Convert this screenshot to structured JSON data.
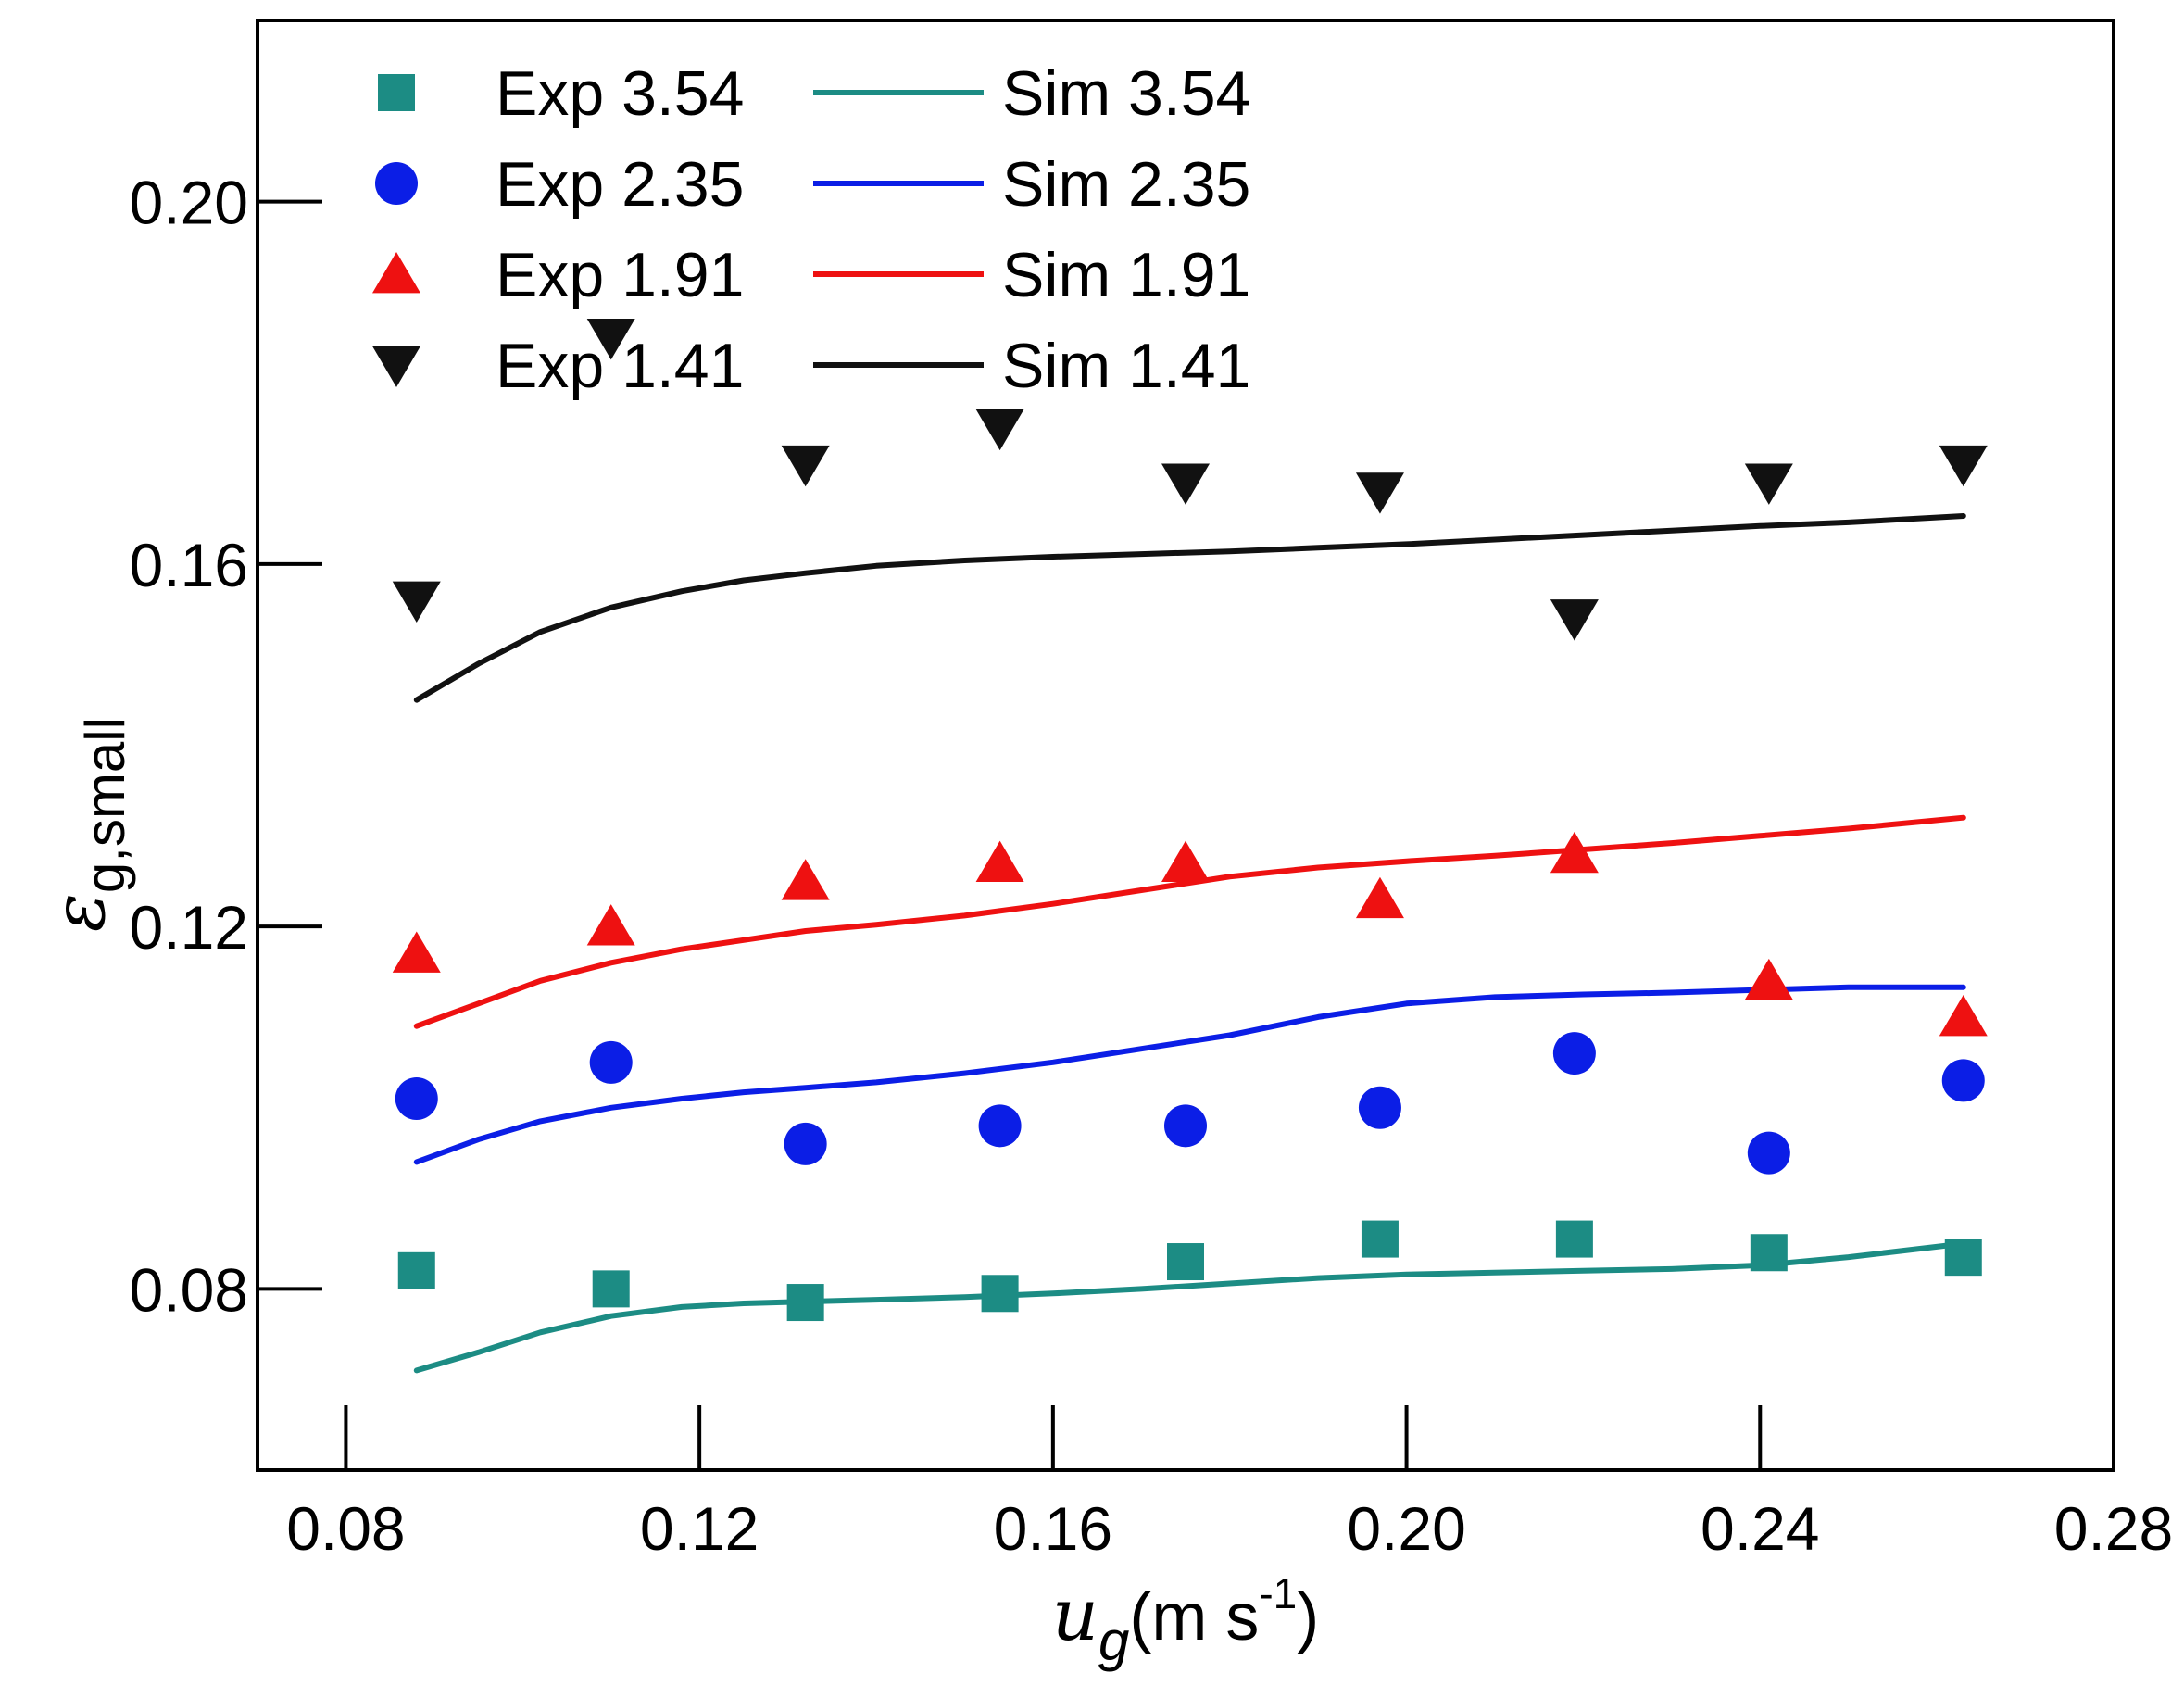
{
  "chart_data": {
    "type": "scatter",
    "title": "",
    "xlabel": {
      "symbol": "u",
      "sub": "g",
      "unit_pre": "(m s",
      "unit_sup": "-1",
      "unit_post": ")"
    },
    "ylabel": {
      "symbol": "ε",
      "sub": "g,small"
    },
    "xlim": [
      0.07,
      0.28
    ],
    "ylim": [
      0.06,
      0.22
    ],
    "xticks": [
      0.08,
      0.12,
      0.16,
      0.2,
      0.24,
      0.28
    ],
    "xtick_labels": [
      "0.08",
      "0.12",
      "0.16",
      "0.20",
      "0.24",
      "0.28"
    ],
    "yticks": [
      0.08,
      0.12,
      0.16,
      0.2
    ],
    "ytick_labels": [
      "0.08",
      "0.12",
      "0.16",
      "0.20"
    ],
    "legend_position": "top-left",
    "series": [
      {
        "exp_name": "Exp 3.54",
        "sim_name": "Sim 3.54",
        "color": "#1c8c84",
        "marker": "square",
        "exp": {
          "x": [
            0.088,
            0.11,
            0.132,
            0.154,
            0.175,
            0.197,
            0.219,
            0.241,
            0.263
          ],
          "y": [
            0.082,
            0.08,
            0.0785,
            0.0795,
            0.083,
            0.0855,
            0.0855,
            0.084,
            0.0835
          ]
        },
        "sim": {
          "x": [
            0.088,
            0.095,
            0.102,
            0.11,
            0.118,
            0.125,
            0.132,
            0.14,
            0.15,
            0.16,
            0.17,
            0.18,
            0.19,
            0.2,
            0.21,
            0.22,
            0.23,
            0.24,
            0.25,
            0.263
          ],
          "y": [
            0.071,
            0.073,
            0.0752,
            0.077,
            0.078,
            0.0784,
            0.0786,
            0.0788,
            0.0791,
            0.0795,
            0.08,
            0.0806,
            0.0812,
            0.0816,
            0.0818,
            0.082,
            0.0822,
            0.0826,
            0.0835,
            0.085
          ]
        }
      },
      {
        "exp_name": "Exp 2.35",
        "sim_name": "Sim 2.35",
        "color": "#0b1ee6",
        "marker": "circle",
        "exp": {
          "x": [
            0.088,
            0.11,
            0.132,
            0.154,
            0.175,
            0.197,
            0.219,
            0.241,
            0.263
          ],
          "y": [
            0.101,
            0.105,
            0.096,
            0.098,
            0.098,
            0.1,
            0.106,
            0.095,
            0.103
          ]
        },
        "sim": {
          "x": [
            0.088,
            0.095,
            0.102,
            0.11,
            0.118,
            0.125,
            0.132,
            0.14,
            0.15,
            0.16,
            0.17,
            0.18,
            0.19,
            0.2,
            0.21,
            0.22,
            0.23,
            0.24,
            0.25,
            0.263
          ],
          "y": [
            0.094,
            0.0965,
            0.0985,
            0.1,
            0.101,
            0.1017,
            0.1022,
            0.1028,
            0.1038,
            0.105,
            0.1065,
            0.108,
            0.11,
            0.1115,
            0.1122,
            0.1125,
            0.1127,
            0.113,
            0.1133,
            0.1133
          ]
        }
      },
      {
        "exp_name": "Exp 1.91",
        "sim_name": "Sim 1.91",
        "color": "#ee1111",
        "marker": "triangle-up",
        "exp": {
          "x": [
            0.088,
            0.11,
            0.132,
            0.154,
            0.175,
            0.197,
            0.219,
            0.241,
            0.263
          ],
          "y": [
            0.117,
            0.12,
            0.125,
            0.127,
            0.127,
            0.123,
            0.128,
            0.114,
            0.11
          ]
        },
        "sim": {
          "x": [
            0.088,
            0.095,
            0.102,
            0.11,
            0.118,
            0.125,
            0.132,
            0.14,
            0.15,
            0.16,
            0.17,
            0.18,
            0.19,
            0.2,
            0.21,
            0.22,
            0.23,
            0.24,
            0.25,
            0.263
          ],
          "y": [
            0.109,
            0.1115,
            0.114,
            0.116,
            0.1175,
            0.1185,
            0.1195,
            0.1202,
            0.1212,
            0.1225,
            0.124,
            0.1255,
            0.1265,
            0.1272,
            0.1278,
            0.1285,
            0.1292,
            0.13,
            0.1308,
            0.132
          ]
        }
      },
      {
        "exp_name": "Exp 1.41",
        "sim_name": "Sim 1.41",
        "color": "#111111",
        "marker": "triangle-down",
        "exp": {
          "x": [
            0.088,
            0.11,
            0.132,
            0.154,
            0.175,
            0.197,
            0.219,
            0.241,
            0.263
          ],
          "y": [
            0.156,
            0.185,
            0.171,
            0.175,
            0.169,
            0.168,
            0.154,
            0.169,
            0.171
          ]
        },
        "sim": {
          "x": [
            0.088,
            0.095,
            0.102,
            0.11,
            0.118,
            0.125,
            0.132,
            0.14,
            0.15,
            0.16,
            0.17,
            0.18,
            0.19,
            0.2,
            0.21,
            0.22,
            0.23,
            0.24,
            0.25,
            0.263
          ],
          "y": [
            0.145,
            0.149,
            0.1525,
            0.1552,
            0.157,
            0.1582,
            0.159,
            0.1598,
            0.1604,
            0.1608,
            0.1611,
            0.1614,
            0.1618,
            0.1622,
            0.1627,
            0.1632,
            0.1637,
            0.1642,
            0.1646,
            0.1653
          ]
        }
      }
    ]
  }
}
